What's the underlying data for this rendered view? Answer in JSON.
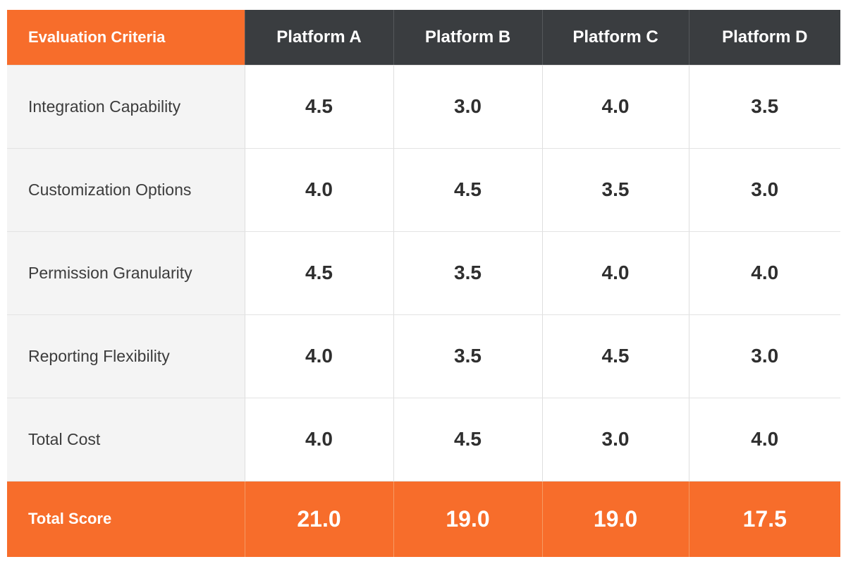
{
  "colors": {
    "accent": "#f76d2b",
    "header_dark": "#3a3d40",
    "criteria_bg": "#f4f4f4"
  },
  "chart_data": {
    "type": "table",
    "header": "Evaluation Criteria",
    "columns": [
      "Platform A",
      "Platform B",
      "Platform C",
      "Platform D"
    ],
    "rows": [
      {
        "label": "Integration Capability",
        "values": [
          "4.5",
          "3.0",
          "4.0",
          "3.5"
        ]
      },
      {
        "label": "Customization Options",
        "values": [
          "4.0",
          "4.5",
          "3.5",
          "3.0"
        ]
      },
      {
        "label": "Permission Granularity",
        "values": [
          "4.5",
          "3.5",
          "4.0",
          "4.0"
        ]
      },
      {
        "label": "Reporting Flexibility",
        "values": [
          "4.0",
          "3.5",
          "4.5",
          "3.0"
        ]
      },
      {
        "label": "Total Cost",
        "values": [
          "4.0",
          "4.5",
          "3.0",
          "4.0"
        ]
      }
    ],
    "total": {
      "label": "Total Score",
      "values": [
        "21.0",
        "19.0",
        "19.0",
        "17.5"
      ]
    }
  }
}
